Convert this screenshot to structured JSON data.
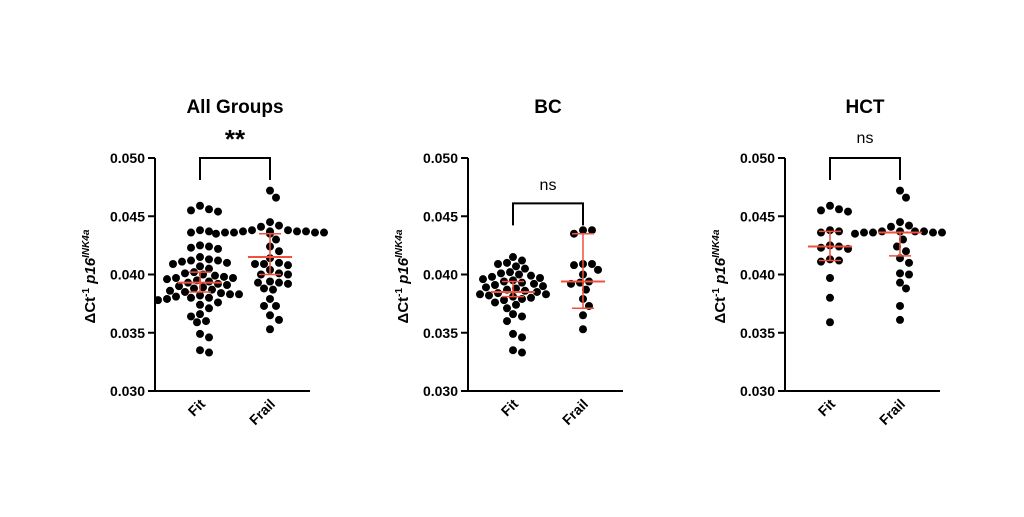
{
  "chart_data": [
    {
      "type": "scatter",
      "title": "All Groups",
      "ylabel": "ΔCt-1 p16INK4a",
      "ylim": [
        0.03,
        0.05
      ],
      "yticks": [
        "0.030",
        "0.035",
        "0.040",
        "0.045",
        "0.050"
      ],
      "categories": [
        "Fit",
        "Frail"
      ],
      "significance": "**",
      "summary": [
        {
          "group": "Fit",
          "median": 0.0393,
          "q1": 0.0385,
          "q3": 0.0402
        },
        {
          "group": "Frail",
          "median": 0.0415,
          "q1": 0.04,
          "q3": 0.0435
        }
      ],
      "values": {
        "Fit": [
          0.0412,
          0.0409,
          0.041,
          0.0407,
          0.0405,
          0.0402,
          0.0401,
          0.04,
          0.0399,
          0.0398,
          0.0397,
          0.0396,
          0.0395,
          0.0394,
          0.0393,
          0.0392,
          0.0391,
          0.039,
          0.0389,
          0.0388,
          0.0387,
          0.0386,
          0.0385,
          0.0384,
          0.0383,
          0.0383,
          0.0382,
          0.0381,
          0.038,
          0.0379,
          0.0378,
          0.0376,
          0.0374,
          0.0371,
          0.0366,
          0.0364,
          0.036,
          0.0349,
          0.0346,
          0.0335,
          0.0333,
          0.0415,
          0.0459,
          0.0454,
          0.0455,
          0.0456,
          0.0438,
          0.0437,
          0.0436,
          0.0424,
          0.0423,
          0.0425,
          0.0422,
          0.0413,
          0.0412,
          0.0411,
          0.0397,
          0.038,
          0.0359
        ],
        "Frail": [
          0.0438,
          0.0435,
          0.0438,
          0.0409,
          0.0408,
          0.0409,
          0.0404,
          0.04,
          0.0393,
          0.0392,
          0.0394,
          0.0387,
          0.0379,
          0.0373,
          0.0365,
          0.0353,
          0.0472,
          0.0466,
          0.0445,
          0.0442,
          0.0441,
          0.0437,
          0.0437,
          0.0436,
          0.0436,
          0.0437,
          0.0435,
          0.0436,
          0.0437,
          0.0436,
          0.043,
          0.0424,
          0.042,
          0.0414,
          0.041,
          0.04,
          0.0401,
          0.0393,
          0.0388,
          0.0373,
          0.0361
        ]
      }
    },
    {
      "type": "scatter",
      "title": "BC",
      "ylabel": "ΔCt-1 p16INK4a",
      "ylim": [
        0.03,
        0.05
      ],
      "yticks": [
        "0.030",
        "0.035",
        "0.040",
        "0.045",
        "0.050"
      ],
      "categories": [
        "Fit",
        "Frail"
      ],
      "significance": "ns",
      "summary": [
        {
          "group": "Fit",
          "median": 0.0385,
          "q1": 0.0381,
          "q3": 0.0394
        },
        {
          "group": "Frail",
          "median": 0.0394,
          "q1": 0.0371,
          "q3": 0.0435
        }
      ],
      "values": {
        "Fit": [
          0.0412,
          0.0409,
          0.041,
          0.0407,
          0.0405,
          0.0402,
          0.0401,
          0.04,
          0.0399,
          0.0398,
          0.0397,
          0.0396,
          0.0395,
          0.0394,
          0.0393,
          0.0392,
          0.0391,
          0.039,
          0.0389,
          0.0388,
          0.0387,
          0.0386,
          0.0385,
          0.0384,
          0.0383,
          0.0383,
          0.0382,
          0.0381,
          0.038,
          0.0379,
          0.0378,
          0.0376,
          0.0374,
          0.0371,
          0.0366,
          0.0364,
          0.036,
          0.0349,
          0.0346,
          0.0335,
          0.0333,
          0.0415
        ],
        "Frail": [
          0.0438,
          0.0435,
          0.0438,
          0.0409,
          0.0408,
          0.0409,
          0.0404,
          0.04,
          0.0393,
          0.0392,
          0.0394,
          0.0387,
          0.0379,
          0.0373,
          0.0365,
          0.0353
        ]
      }
    },
    {
      "type": "scatter",
      "title": "HCT",
      "ylabel": "ΔCt-1 p16INK4a",
      "ylim": [
        0.03,
        0.05
      ],
      "yticks": [
        "0.030",
        "0.035",
        "0.040",
        "0.045",
        "0.050"
      ],
      "categories": [
        "Fit",
        "Frail"
      ],
      "significance": "ns",
      "summary": [
        {
          "group": "Fit",
          "median": 0.0424,
          "q1": 0.0412,
          "q3": 0.0437
        },
        {
          "group": "Frail",
          "median": 0.0436,
          "q1": 0.0416,
          "q3": 0.0436
        }
      ],
      "values": {
        "Fit": [
          0.0459,
          0.0454,
          0.0455,
          0.0456,
          0.0438,
          0.0437,
          0.0436,
          0.0424,
          0.0423,
          0.0425,
          0.0422,
          0.0413,
          0.0412,
          0.0411,
          0.0397,
          0.038,
          0.0359
        ],
        "Frail": [
          0.0472,
          0.0466,
          0.0445,
          0.0442,
          0.0441,
          0.0437,
          0.0437,
          0.0436,
          0.0436,
          0.0437,
          0.0435,
          0.0436,
          0.0437,
          0.0436,
          0.043,
          0.0424,
          0.042,
          0.0414,
          0.041,
          0.04,
          0.0401,
          0.0393,
          0.0388,
          0.0373,
          0.0361
        ]
      }
    }
  ],
  "colors": {
    "points": "#000000",
    "summary": "#f0503c",
    "axis": "#000000"
  }
}
